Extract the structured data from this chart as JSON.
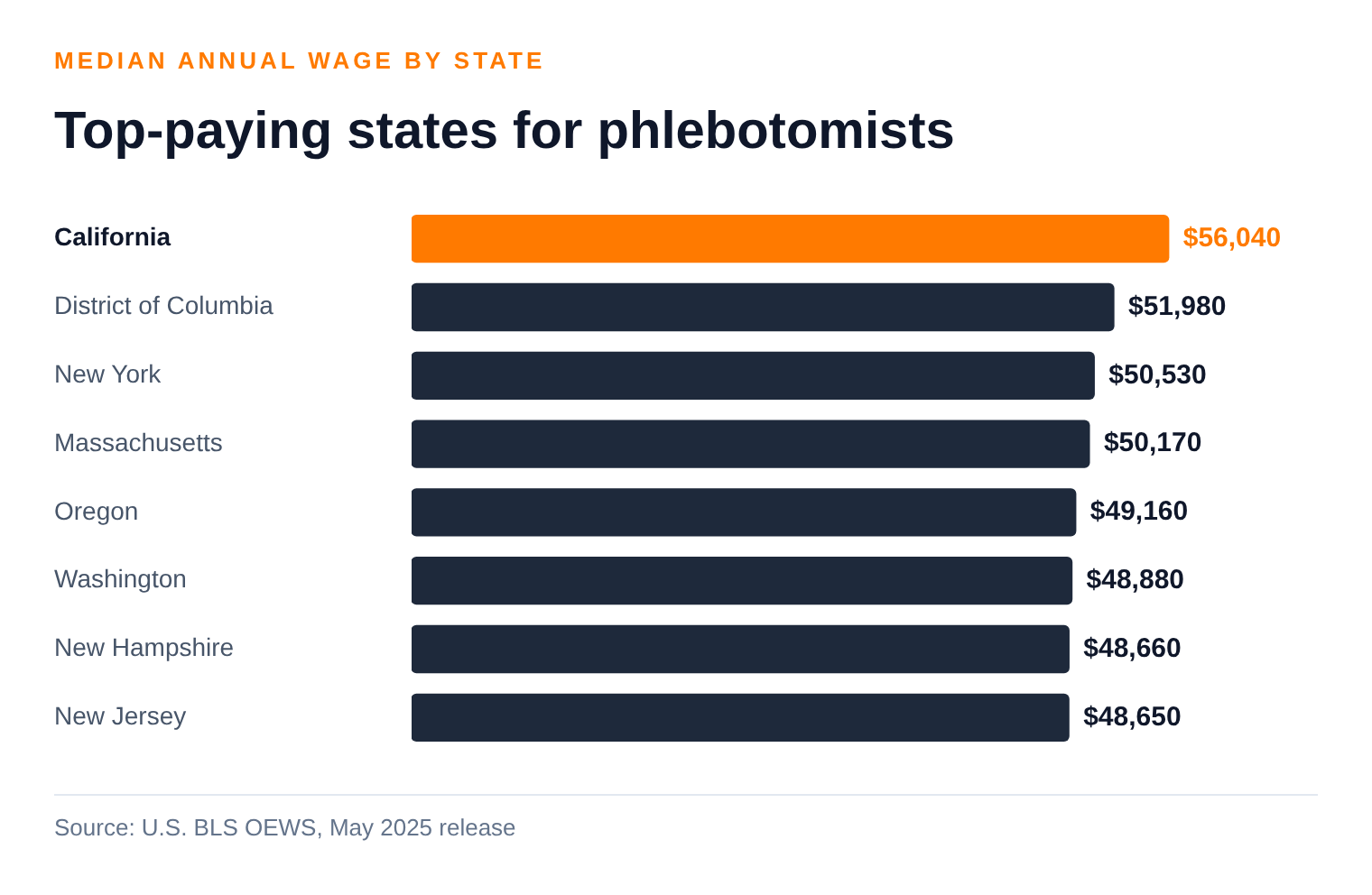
{
  "chart_data": {
    "type": "bar",
    "orientation": "horizontal",
    "tick_labels": "y",
    "subtitle": "MEDIAN ANNUAL WAGE BY STATE",
    "title": "Top-paying states for phlebotomists",
    "categories": [
      "California",
      "District of Columbia",
      "New York",
      "Massachusetts",
      "Oregon",
      "Washington",
      "New Hampshire",
      "New Jersey"
    ],
    "values": [
      56040,
      51980,
      50530,
      50170,
      49160,
      48880,
      48660,
      48650
    ],
    "colors": [
      "#ff7a00",
      "#1e293b",
      "#1e293b",
      "#1e293b",
      "#1e293b",
      "#1e293b",
      "#1e293b",
      "#1e293b"
    ],
    "value_labels": [
      "$56,040",
      "$51,980",
      "$50,530",
      "$50,170",
      "$49,160",
      "$48,880",
      "$48,660",
      "$48,650"
    ],
    "annotations": [
      "Source: U.S. BLS OEWS, May 2025 release"
    ]
  }
}
